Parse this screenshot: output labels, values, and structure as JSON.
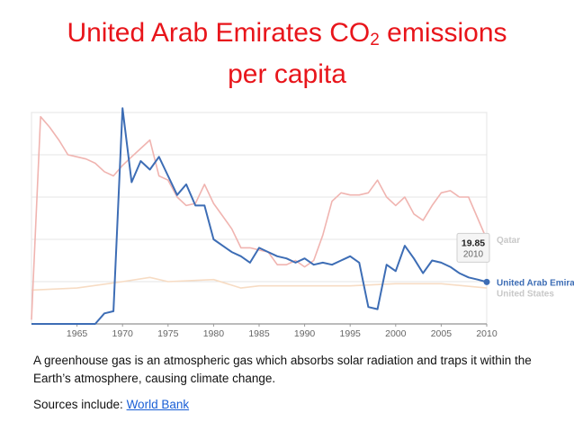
{
  "title": {
    "line1_prefix": "United Arab Emirates CO",
    "subscript": "2",
    "line1_suffix": " emissions",
    "line2": "per capita"
  },
  "description": "A greenhouse gas is an atmospheric gas which absorbs solar radiation and traps it within the Earth’s atmosphere, causing climate change.",
  "sources": {
    "prefix": "Sources include: ",
    "link": "World Bank"
  },
  "chart_data": {
    "type": "line",
    "xlim": [
      1960,
      2010
    ],
    "ylim": [
      0,
      100
    ],
    "x_ticks": [
      "1965",
      "1970",
      "1975",
      "1980",
      "1985",
      "1990",
      "1995",
      "2000",
      "2005",
      "2010"
    ],
    "grid": true,
    "tooltip": {
      "value": "19.85",
      "year": "2010"
    },
    "series": [
      {
        "name": "Qatar",
        "color": "#f0b4b0",
        "x": [
          1960,
          1961,
          1962,
          1963,
          1964,
          1965,
          1966,
          1967,
          1968,
          1969,
          1970,
          1971,
          1972,
          1973,
          1974,
          1975,
          1976,
          1977,
          1978,
          1979,
          1980,
          1981,
          1982,
          1983,
          1984,
          1985,
          1986,
          1987,
          1988,
          1989,
          1990,
          1991,
          1992,
          1993,
          1994,
          1995,
          1996,
          1997,
          1998,
          1999,
          2000,
          2001,
          2002,
          2003,
          2004,
          2005,
          2006,
          2007,
          2008,
          2009,
          2010
        ],
        "y": [
          2,
          98,
          93,
          87,
          80,
          79,
          78,
          76,
          72,
          70,
          75,
          79,
          83,
          87,
          70,
          68,
          60,
          56,
          57,
          66,
          57,
          51,
          45,
          36,
          36,
          35,
          34,
          28,
          28,
          30,
          27,
          30,
          42,
          58,
          62,
          61,
          61,
          62,
          68,
          60,
          56,
          60,
          52,
          49,
          56,
          62,
          63,
          60,
          60,
          50,
          40
        ]
      },
      {
        "name": "United Arab Emirates",
        "color": "#3d6db5",
        "x": [
          1960,
          1961,
          1962,
          1963,
          1964,
          1965,
          1966,
          1967,
          1968,
          1969,
          1970,
          1971,
          1972,
          1973,
          1974,
          1975,
          1976,
          1977,
          1978,
          1979,
          1980,
          1981,
          1982,
          1983,
          1984,
          1985,
          1986,
          1987,
          1988,
          1989,
          1990,
          1991,
          1992,
          1993,
          1994,
          1995,
          1996,
          1997,
          1998,
          1999,
          2000,
          2001,
          2002,
          2003,
          2004,
          2005,
          2006,
          2007,
          2008,
          2009,
          2010
        ],
        "y": [
          0,
          0,
          0,
          0,
          0,
          0,
          0,
          0,
          5,
          6,
          102,
          67,
          77,
          73,
          79,
          70,
          61,
          66,
          56,
          56,
          40,
          37,
          34,
          32,
          29,
          36,
          34,
          32,
          31,
          29,
          31,
          28,
          29,
          28,
          30,
          32,
          29,
          8,
          7,
          28,
          25,
          37,
          31,
          24,
          30,
          29,
          27,
          24,
          22,
          21,
          19.85
        ]
      },
      {
        "name": "United States",
        "color": "#f7dcc4",
        "x": [
          1960,
          1965,
          1970,
          1973,
          1975,
          1980,
          1983,
          1985,
          1990,
          1995,
          2000,
          2005,
          2010
        ],
        "y": [
          16,
          17,
          20,
          22,
          20,
          21,
          17,
          18,
          18,
          18,
          19,
          19,
          17
        ]
      }
    ]
  }
}
